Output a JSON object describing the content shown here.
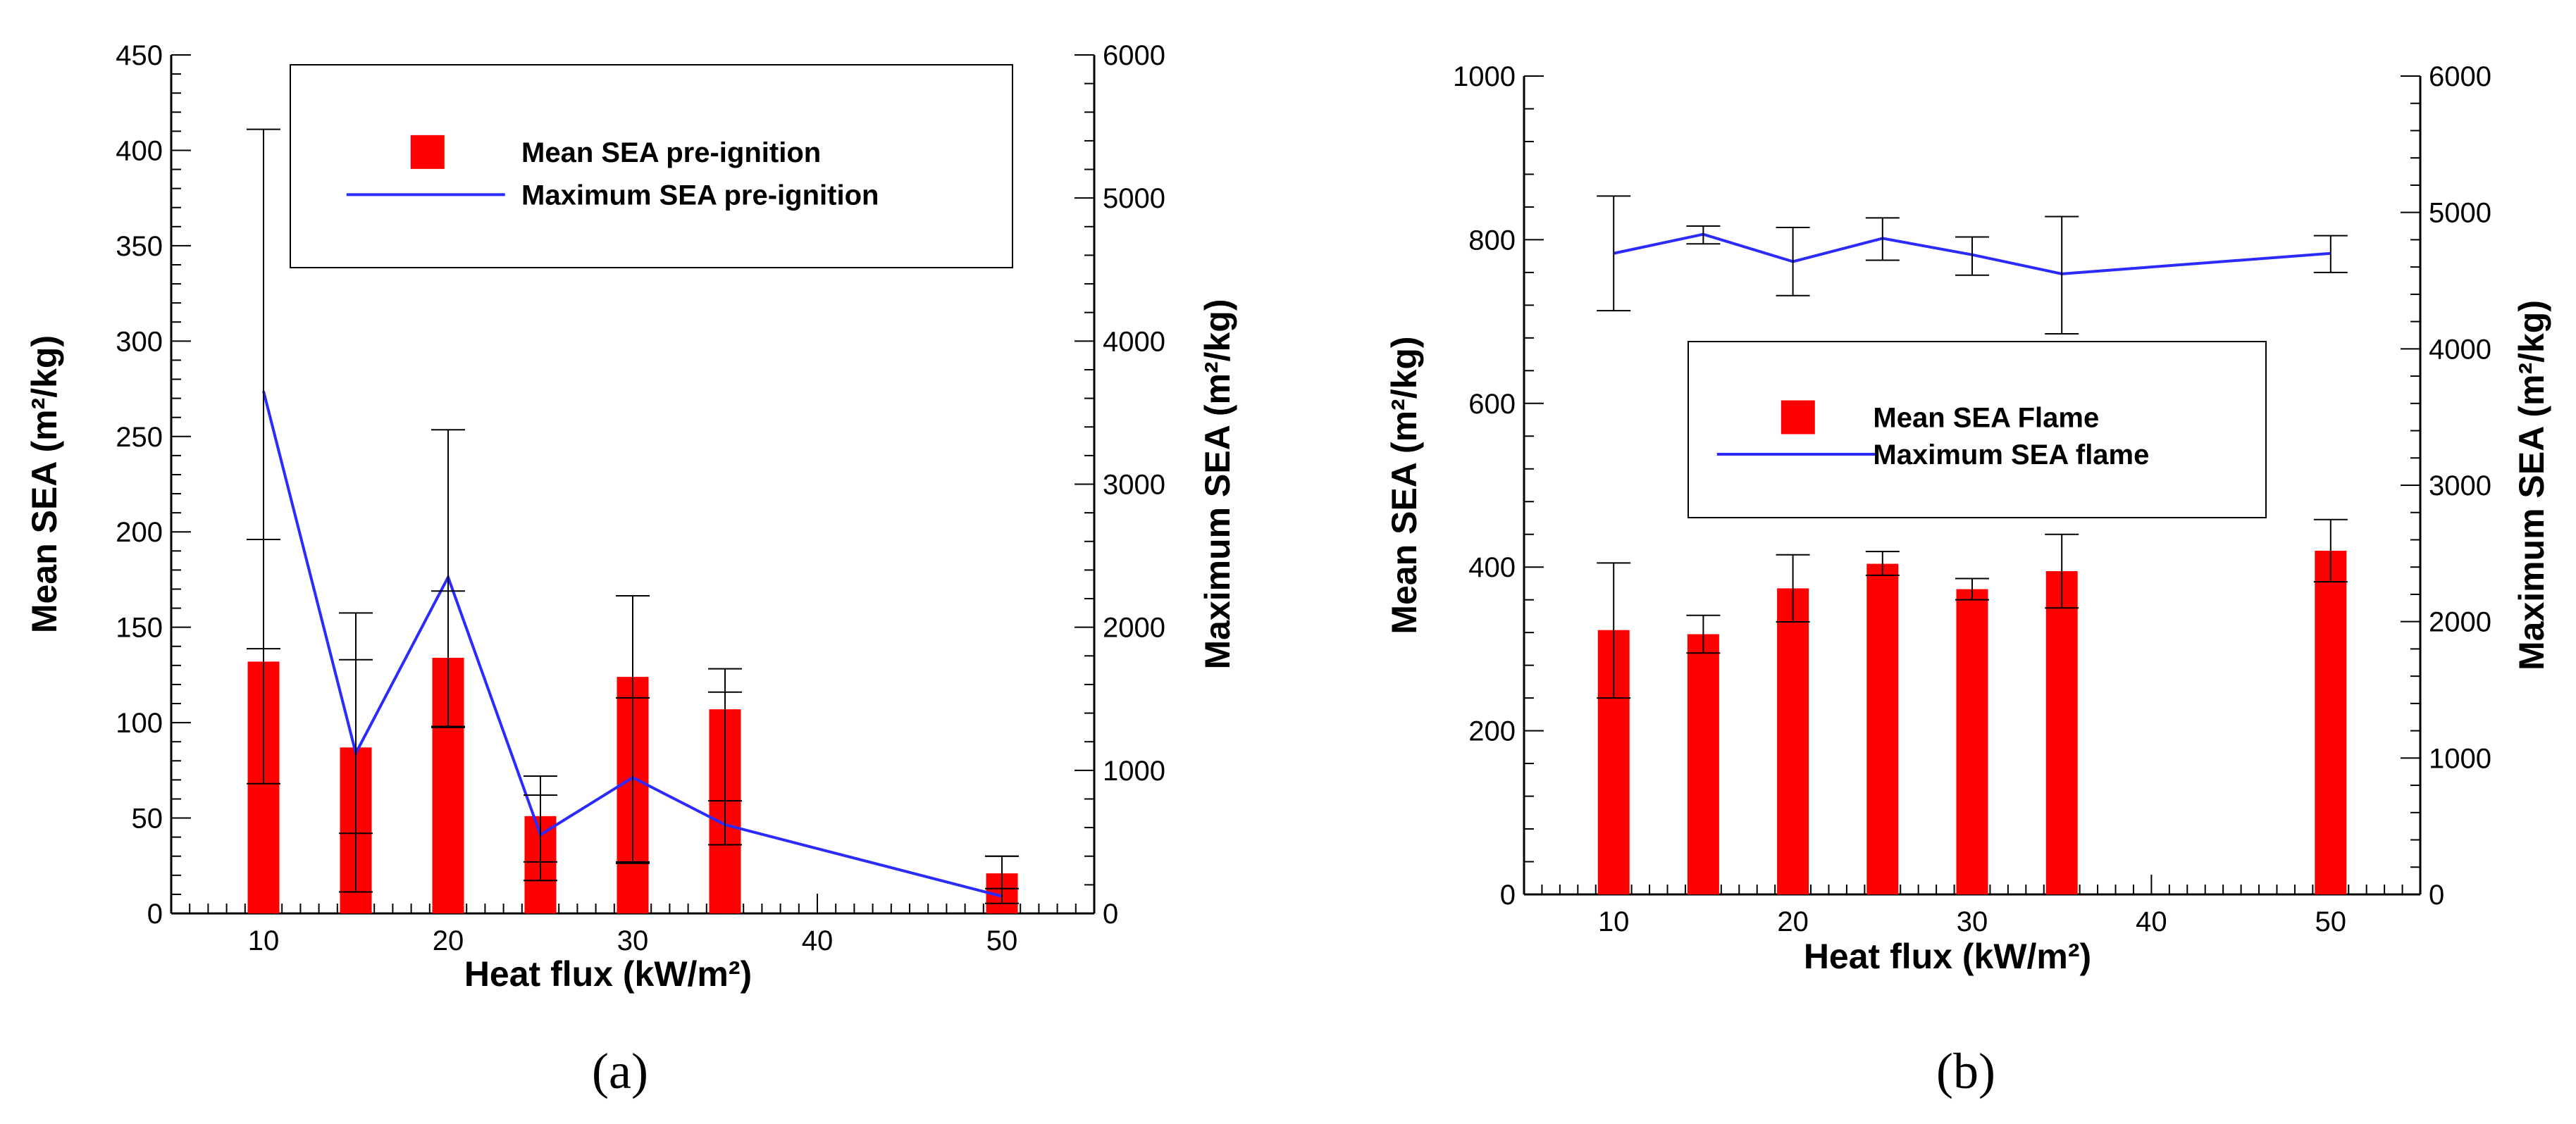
{
  "chart_data": [
    {
      "type": "bar",
      "panel_label": "(a)",
      "xlabel": "Heat flux (kW/m²)",
      "ylabel": "Mean SEA (m²/kg)",
      "y2label": "Maximum SEA (m²/kg)",
      "xlim": [
        5,
        55
      ],
      "xticks": [
        10,
        20,
        30,
        40,
        50
      ],
      "ylim": [
        0,
        450
      ],
      "yticks": [
        0,
        50,
        100,
        150,
        200,
        250,
        300,
        350,
        400,
        450
      ],
      "y2lim": [
        0,
        6000
      ],
      "y2ticks": [
        0,
        1000,
        2000,
        3000,
        4000,
        5000,
        6000
      ],
      "legend_position": "top-right",
      "series": [
        {
          "name": "Mean SEA pre-ignition",
          "kind": "bar",
          "axis": "left",
          "color": "#ff0000",
          "x": [
            10,
            15,
            20,
            25,
            30,
            35,
            50
          ],
          "values": [
            132,
            87,
            134,
            51,
            124,
            107,
            21
          ],
          "err_low": [
            68,
            42,
            98,
            27,
            27,
            59,
            13
          ],
          "err_high": [
            196,
            133,
            169,
            62,
            113,
            116,
            30
          ]
        },
        {
          "name": "Maximum SEA pre-ignition",
          "kind": "line",
          "axis": "right",
          "color": "#2b2bff",
          "x": [
            10,
            15,
            20,
            25,
            30,
            35,
            50
          ],
          "values": [
            3650,
            1120,
            2350,
            550,
            950,
            620,
            120
          ],
          "err_low": [
            1850,
            150,
            1300,
            230,
            350,
            480,
            70
          ],
          "err_high": [
            5480,
            2100,
            3380,
            960,
            2220,
            1710,
            400
          ]
        }
      ]
    },
    {
      "type": "bar",
      "panel_label": "(b)",
      "xlabel": "Heat flux (kW/m²)",
      "ylabel": "Mean SEA (m²/kg)",
      "y2label": "Maximum SEA (m²/kg)",
      "xlim": [
        5,
        55
      ],
      "xticks": [
        10,
        20,
        30,
        40,
        50
      ],
      "ylim": [
        0,
        1000
      ],
      "yticks": [
        0,
        200,
        400,
        600,
        800,
        1000
      ],
      "y2lim": [
        0,
        6000
      ],
      "y2ticks": [
        0,
        1000,
        2000,
        3000,
        4000,
        5000,
        6000
      ],
      "legend_position": "center-right",
      "series": [
        {
          "name": "Mean SEA Flame",
          "kind": "bar",
          "axis": "left",
          "color": "#ff0000",
          "x": [
            10,
            15,
            20,
            25,
            30,
            35,
            50
          ],
          "values": [
            323,
            318,
            374,
            404,
            373,
            395,
            420
          ],
          "err_low": [
            240,
            295,
            333,
            390,
            360,
            350,
            382
          ],
          "err_high": [
            405,
            341,
            415,
            419,
            386,
            440,
            458
          ]
        },
        {
          "name": "Maximum SEA flame",
          "kind": "line",
          "axis": "right",
          "color": "#2b2bff",
          "x": [
            10,
            15,
            20,
            25,
            30,
            35,
            50
          ],
          "values": [
            4700,
            4840,
            4640,
            4810,
            4690,
            4550,
            4700
          ],
          "err_low": [
            4280,
            4770,
            4390,
            4650,
            4540,
            4110,
            4560
          ],
          "err_high": [
            5120,
            4900,
            4890,
            4960,
            4820,
            4970,
            4830
          ]
        }
      ]
    }
  ]
}
